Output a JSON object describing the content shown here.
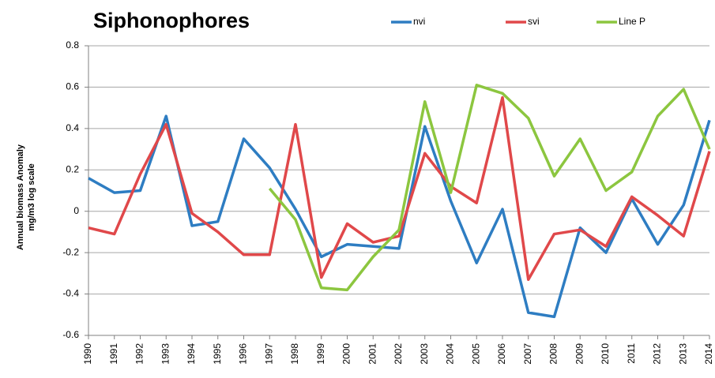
{
  "chart_data": {
    "type": "line",
    "title": "Siphonophores",
    "y_label_lines": [
      "Annual biomass Anomaly",
      "mg/m3 log scale"
    ],
    "categories": [
      "1990",
      "1991",
      "1992",
      "1993",
      "1994",
      "1995",
      "1996",
      "1997",
      "1998",
      "1999",
      "2000",
      "2001",
      "2002",
      "2003",
      "2004",
      "2005",
      "2006",
      "2007",
      "2008",
      "2009",
      "2010",
      "2011",
      "2012",
      "2013",
      "2014"
    ],
    "series": [
      {
        "name": "nvi",
        "color": "#2e7dc2",
        "values": [
          0.16,
          0.09,
          0.1,
          0.46,
          -0.07,
          -0.05,
          0.35,
          0.21,
          0.01,
          -0.22,
          -0.16,
          -0.17,
          -0.18,
          0.41,
          0.05,
          -0.25,
          0.01,
          -0.49,
          -0.51,
          -0.08,
          -0.2,
          0.06,
          -0.16,
          0.03,
          0.44
        ]
      },
      {
        "name": "svi",
        "color": "#e0484a",
        "values": [
          -0.08,
          -0.11,
          0.18,
          0.42,
          -0.01,
          -0.1,
          -0.21,
          -0.21,
          0.42,
          -0.32,
          -0.06,
          -0.15,
          -0.12,
          0.28,
          0.12,
          0.04,
          0.55,
          -0.33,
          -0.11,
          -0.09,
          -0.17,
          0.07,
          -0.02,
          -0.12,
          0.29
        ]
      },
      {
        "name": "Line P",
        "color": "#8cc63f",
        "values": [
          null,
          null,
          null,
          null,
          null,
          null,
          null,
          0.11,
          -0.04,
          -0.37,
          -0.38,
          -0.22,
          -0.09,
          0.53,
          0.09,
          0.61,
          0.57,
          0.45,
          0.17,
          0.35,
          0.1,
          0.19,
          0.46,
          0.59,
          0.3
        ]
      }
    ],
    "ylim": [
      -0.6,
      0.8
    ],
    "yticks": [
      -0.6,
      -0.4,
      -0.2,
      0,
      0.2,
      0.4,
      0.6,
      0.8
    ],
    "grid": true,
    "legend": "top"
  }
}
